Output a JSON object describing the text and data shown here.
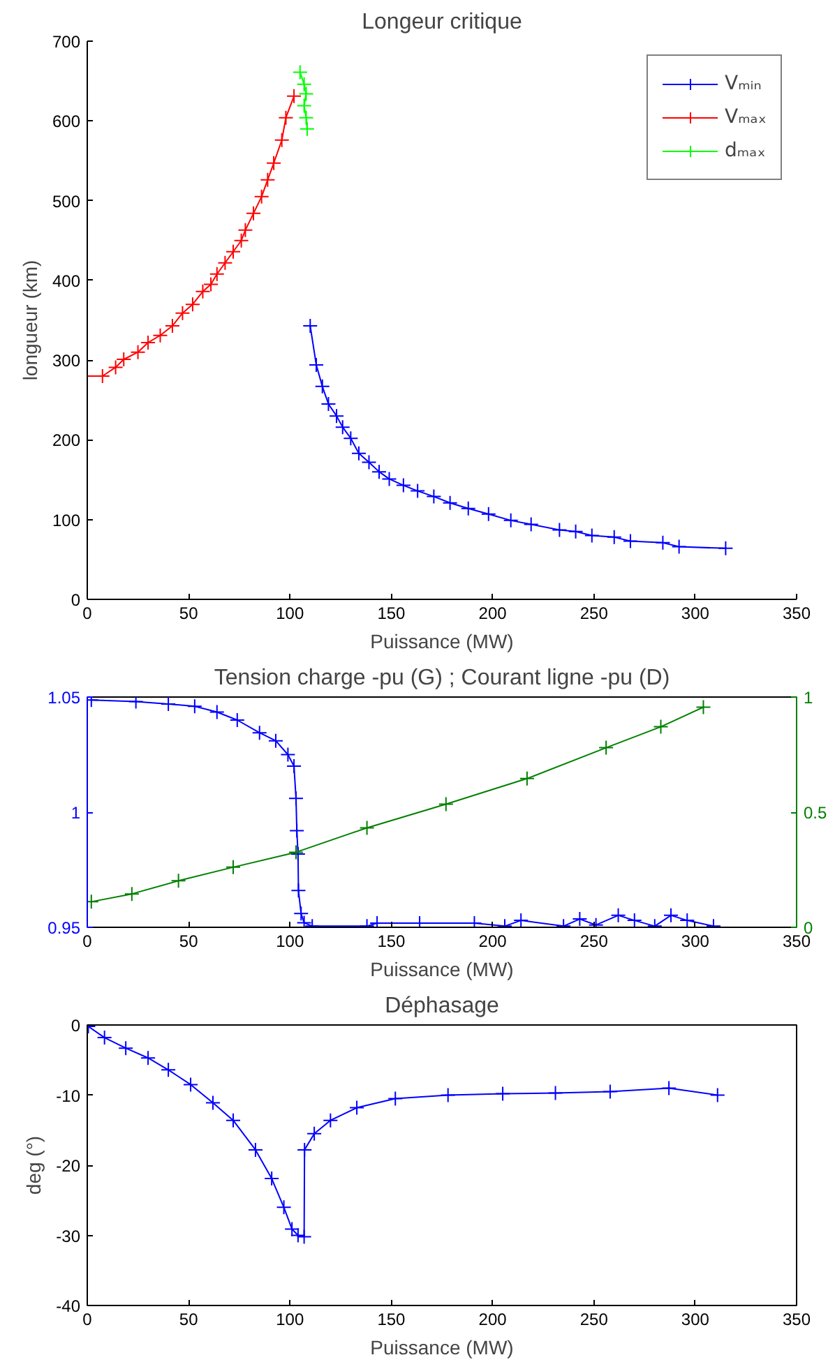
{
  "chart_data": [
    {
      "type": "line",
      "title": "Longeur critique",
      "xlabel": "Puissance (MW)",
      "ylabel": "longueur (km)",
      "xlim": [
        0,
        350
      ],
      "xticks": [
        0,
        50,
        100,
        150,
        200,
        250,
        300,
        350
      ],
      "ylim": [
        0,
        700
      ],
      "yticks": [
        0,
        100,
        200,
        300,
        400,
        500,
        600,
        700
      ],
      "grid": false,
      "legend": "top right",
      "marker": "cross",
      "line_style": "solid",
      "series": [
        {
          "name": "Vₘᵢₙ",
          "color": "#0000ff",
          "x": [
            110,
            113,
            116,
            119,
            123,
            126,
            130,
            134,
            139,
            144,
            149,
            156,
            163,
            171,
            179,
            188,
            198,
            209,
            219,
            233,
            241,
            249,
            260,
            268,
            284,
            292,
            315
          ],
          "values": [
            343,
            294,
            267,
            245,
            230,
            216,
            202,
            183,
            172,
            160,
            151,
            143,
            136,
            129,
            121,
            114,
            107,
            99,
            94,
            87,
            85,
            80,
            78,
            73,
            71,
            66,
            64
          ]
        },
        {
          "name": "Vₘₐₓ",
          "color": "#ff0000",
          "x": [
            0,
            7.5,
            14,
            18,
            25,
            30,
            36,
            42,
            47,
            52,
            57,
            61,
            64,
            68,
            72,
            76,
            78,
            82,
            86,
            89,
            92,
            96,
            98,
            102
          ],
          "values": [
            280,
            280,
            291,
            301,
            310,
            322,
            331,
            343,
            359,
            370,
            386,
            395,
            408,
            422,
            436,
            450,
            463,
            484,
            505,
            526,
            547,
            576,
            604,
            631
          ]
        },
        {
          "name": "dₘₐₓ",
          "color": "#00ff00",
          "x": [
            105,
            107,
            108,
            107,
            108,
            108.5
          ],
          "values": [
            661,
            646,
            634,
            619,
            604,
            590
          ]
        }
      ]
    },
    {
      "type": "line",
      "title": "Tension charge -pu (G) ; Courant ligne -pu (D)",
      "xlabel": "Puissance (MW)",
      "xlim": [
        0,
        350
      ],
      "xticks": [
        0,
        50,
        100,
        150,
        200,
        250,
        300,
        350
      ],
      "ylim": [
        0.95,
        1.05
      ],
      "yticks": [
        0.95,
        1,
        1.05
      ],
      "y2lim": [
        0,
        1
      ],
      "y2ticks": [
        0,
        0.5,
        1
      ],
      "grid": false,
      "marker": "cross",
      "line_style": "solid",
      "series": [
        {
          "color": "#0000ff",
          "x": [
            2,
            24,
            40,
            53,
            64,
            74,
            85,
            93,
            99,
            102,
            103,
            103.4,
            104,
            104.2,
            105.5,
            107,
            111,
            138,
            143,
            164,
            191,
            206,
            214,
            235,
            243,
            251,
            262,
            270,
            280,
            288,
            296,
            309
          ],
          "values": [
            1.0487,
            1.048,
            1.047,
            1.046,
            1.0435,
            1.04,
            1.0345,
            1.031,
            1.025,
            1.02,
            1.006,
            0.992,
            0.9818,
            0.966,
            0.956,
            0.952,
            0.9505,
            0.9505,
            0.9518,
            0.9518,
            0.9518,
            0.9505,
            0.953,
            0.9505,
            0.9536,
            0.951,
            0.9552,
            0.953,
            0.9505,
            0.9552,
            0.953,
            0.9505
          ]
        },
        {
          "color": "#008000",
          "axis": "y2",
          "x": [
            2,
            22,
            45,
            72,
            103,
            138,
            177,
            217,
            256,
            283,
            304
          ],
          "values": [
            0.111,
            0.145,
            0.202,
            0.261,
            0.326,
            0.432,
            0.535,
            0.646,
            0.78,
            0.871,
            0.956
          ]
        }
      ]
    },
    {
      "type": "line",
      "title": "Déphasage",
      "xlabel": "Puissance (MW)",
      "ylabel": "deg (°)",
      "xlim": [
        0,
        350
      ],
      "xticks": [
        0,
        50,
        100,
        150,
        200,
        250,
        300,
        350
      ],
      "ylim": [
        -40,
        0
      ],
      "yticks": [
        -40,
        -30,
        -20,
        -10,
        0
      ],
      "grid": false,
      "marker": "cross",
      "line_style": "solid",
      "series": [
        {
          "color": "#0000ff",
          "x": [
            0.5,
            8.5,
            19,
            30,
            40,
            51,
            62,
            72,
            83,
            91,
            97,
            101,
            104,
            107,
            107.2,
            112,
            120,
            133,
            152,
            178,
            205,
            231,
            258,
            287,
            311
          ],
          "values": [
            -0.2,
            -1.8,
            -3.3,
            -4.7,
            -6.4,
            -8.5,
            -11.1,
            -13.6,
            -17.8,
            -21.9,
            -26,
            -29.1,
            -30,
            -30.2,
            -17.8,
            -15.5,
            -13.6,
            -11.8,
            -10.5,
            -10,
            -9.8,
            -9.7,
            -9.5,
            -9,
            -10
          ]
        }
      ]
    }
  ]
}
